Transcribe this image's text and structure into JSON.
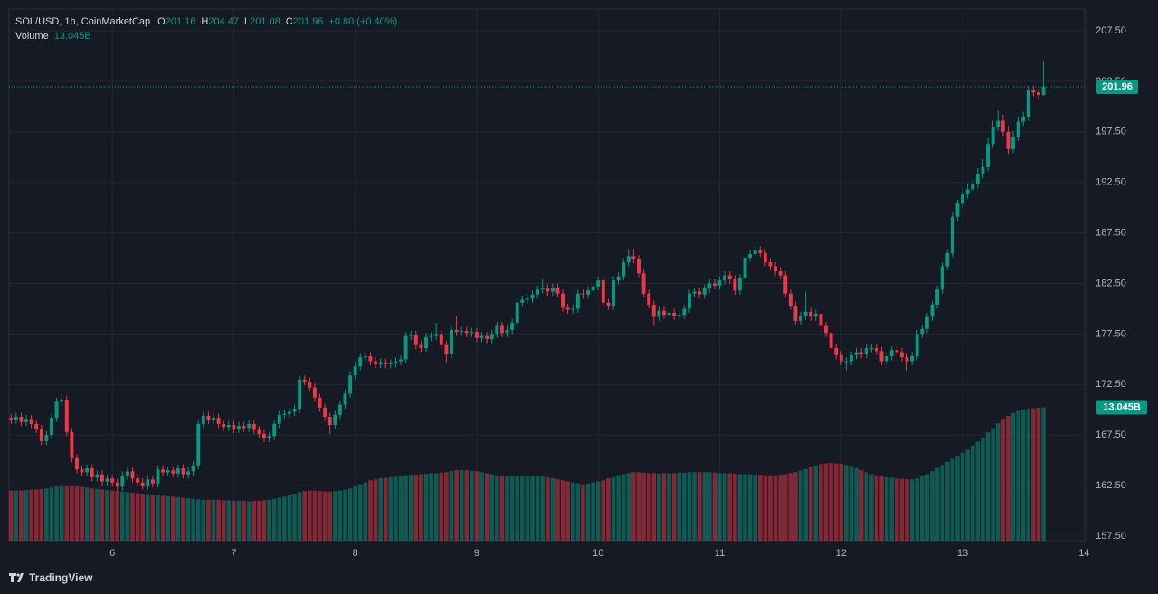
{
  "chart_data": {
    "type": "candlestick",
    "title": "SOL/USD, 1h, CoinMarketCap",
    "legend_keys": [
      "O",
      "H",
      "L",
      "C"
    ],
    "change_label": "+0.80 (+0.40%)",
    "volume_name": "Volume",
    "volume_label": "13.045B",
    "brand": "TradingView",
    "up_color": "#089981",
    "down_color": "#f23645",
    "grid": true,
    "ylim": [
      157.05,
      209.65
    ],
    "yticks": [
      {
        "value": 157.5,
        "label": "157.50"
      },
      {
        "value": 162.5,
        "label": "162.50"
      },
      {
        "value": 167.5,
        "label": "167.50"
      },
      {
        "value": 172.5,
        "label": "172.50"
      },
      {
        "value": 177.5,
        "label": "177.50"
      },
      {
        "value": 182.5,
        "label": "182.50"
      },
      {
        "value": 187.5,
        "label": "187.50"
      },
      {
        "value": 192.5,
        "label": "192.50"
      },
      {
        "value": 197.5,
        "label": "197.50"
      },
      {
        "value": 202.5,
        "label": "202.50"
      },
      {
        "value": 207.5,
        "label": "207.50"
      }
    ],
    "xlim": [
      -0.4,
      212.3
    ],
    "xticks": [
      {
        "value": 20,
        "label": "6"
      },
      {
        "value": 44,
        "label": "7"
      },
      {
        "value": 68,
        "label": "8"
      },
      {
        "value": 92,
        "label": "9"
      },
      {
        "value": 116,
        "label": "10"
      },
      {
        "value": 140,
        "label": "11"
      },
      {
        "value": 164,
        "label": "12"
      },
      {
        "value": 188,
        "label": "13"
      },
      {
        "value": 212,
        "label": "14"
      }
    ],
    "vlim": [
      0,
      52
    ],
    "open": [
      169.2,
      169.0,
      169.3,
      168.8,
      169.1,
      168.6,
      168.1,
      166.9,
      167.5,
      169.2,
      170.8,
      171.0,
      167.8,
      165.2,
      164.1,
      163.8,
      164.2,
      163.3,
      163.6,
      162.9,
      163.2,
      162.8,
      162.4,
      163.5,
      163.9,
      163.2,
      162.8,
      162.5,
      163.1,
      162.7,
      164.1,
      163.8,
      164.0,
      163.7,
      164.2,
      163.6,
      163.9,
      164.5,
      168.6,
      169.4,
      169.0,
      169.2,
      168.6,
      168.3,
      168.5,
      168.1,
      168.4,
      168.2,
      168.6,
      168.0,
      167.6,
      167.2,
      167.4,
      168.6,
      169.5,
      169.6,
      169.8,
      170.1,
      173.0,
      172.8,
      172.2,
      171.2,
      170.2,
      169.3,
      168.5,
      169.5,
      170.5,
      171.6,
      173.4,
      174.3,
      175.2,
      175.3,
      174.8,
      174.5,
      174.7,
      174.5,
      174.6,
      174.8,
      175.0,
      177.3,
      177.4,
      176.4,
      176.1,
      177.2,
      177.3,
      177.5,
      176.4,
      175.5,
      177.9,
      177.7,
      177.8,
      177.6,
      177.7,
      177.1,
      177.3,
      177.0,
      177.5,
      178.3,
      177.6,
      177.9,
      178.6,
      180.6,
      180.9,
      181.0,
      181.4,
      181.9,
      182.0,
      181.7,
      182.1,
      181.5,
      180.1,
      179.9,
      180.0,
      181.5,
      181.4,
      181.8,
      182.2,
      182.8,
      180.6,
      180.3,
      182.8,
      183.2,
      184.6,
      185.2,
      184.9,
      183.5,
      181.5,
      180.4,
      179.2,
      179.8,
      179.4,
      179.6,
      179.3,
      179.4,
      180.0,
      181.5,
      181.7,
      181.4,
      182.0,
      182.5,
      182.3,
      182.8,
      183.3,
      182.9,
      181.8,
      183.0,
      185.05,
      185.4,
      185.8,
      185.5,
      184.6,
      184.2,
      183.7,
      183.3,
      181.5,
      180.3,
      178.8,
      179.3,
      179.7,
      179.2,
      179.5,
      178.3,
      177.6,
      176.1,
      175.4,
      174.8,
      174.8,
      175.4,
      175.7,
      175.5,
      176.1,
      176.1,
      175.8,
      174.8,
      175.3,
      175.9,
      175.7,
      175.2,
      174.8,
      175.3,
      177.5,
      178.0,
      179.2,
      180.4,
      181.9,
      184.2,
      185.5,
      189.1,
      190.4,
      191.3,
      191.8,
      192.3,
      193.3,
      194.0,
      196.3,
      198.0,
      198.6,
      197.5,
      195.8,
      197.0,
      198.5,
      199.0,
      201.6,
      201.4,
      201.16
    ],
    "high": [
      169.6,
      169.7,
      169.7,
      169.5,
      169.5,
      169.0,
      168.5,
      167.9,
      169.6,
      171.2,
      171.6,
      171.4,
      168.2,
      165.6,
      164.5,
      164.6,
      164.6,
      164.0,
      164.0,
      163.6,
      163.6,
      163.2,
      163.9,
      164.3,
      164.3,
      163.6,
      163.2,
      163.5,
      163.5,
      164.5,
      164.5,
      164.4,
      164.4,
      164.6,
      164.6,
      164.3,
      164.9,
      169.0,
      169.8,
      169.8,
      169.6,
      169.6,
      169.0,
      168.9,
      168.9,
      168.8,
      168.8,
      169.0,
      169.0,
      168.4,
      168.0,
      167.8,
      169.0,
      169.9,
      170.0,
      170.2,
      170.5,
      173.4,
      173.4,
      173.2,
      172.6,
      171.6,
      170.6,
      169.7,
      169.9,
      170.9,
      172.0,
      173.8,
      174.7,
      175.6,
      175.7,
      175.7,
      175.2,
      175.1,
      175.1,
      175.0,
      175.2,
      175.4,
      177.7,
      177.8,
      177.8,
      176.8,
      177.6,
      177.7,
      178.6,
      177.9,
      176.8,
      178.3,
      179.3,
      178.2,
      178.2,
      178.1,
      178.1,
      177.7,
      177.7,
      177.9,
      178.7,
      178.7,
      178.3,
      179.0,
      181.0,
      181.3,
      181.4,
      181.8,
      182.3,
      182.9,
      182.4,
      182.5,
      182.5,
      181.9,
      180.5,
      180.4,
      181.9,
      181.9,
      182.2,
      182.6,
      183.2,
      183.2,
      181.0,
      183.2,
      183.6,
      185.0,
      185.9,
      185.9,
      185.3,
      183.9,
      181.9,
      180.8,
      180.2,
      180.2,
      180.0,
      180.0,
      179.8,
      180.4,
      181.9,
      182.1,
      182.1,
      182.4,
      182.9,
      182.9,
      183.2,
      183.7,
      183.7,
      183.3,
      183.4,
      185.45,
      185.8,
      186.6,
      186.2,
      185.9,
      185.0,
      184.6,
      184.1,
      183.7,
      181.9,
      180.7,
      179.7,
      181.7,
      180.1,
      179.9,
      179.9,
      178.7,
      178.0,
      176.5,
      175.8,
      175.2,
      175.8,
      176.1,
      176.1,
      176.5,
      176.5,
      176.5,
      176.2,
      175.7,
      176.3,
      176.3,
      176.1,
      175.6,
      175.7,
      177.9,
      178.4,
      179.6,
      180.8,
      182.3,
      184.6,
      185.9,
      189.5,
      190.8,
      191.9,
      192.4,
      192.9,
      193.9,
      194.8,
      196.9,
      198.6,
      199.6,
      199.2,
      198.1,
      197.6,
      199.0,
      199.5,
      202.0,
      202.0,
      201.8,
      204.47
    ],
    "low": [
      168.6,
      168.6,
      168.4,
      168.4,
      168.2,
      167.7,
      166.5,
      166.5,
      167.1,
      168.8,
      170.4,
      167.4,
      164.8,
      163.7,
      163.4,
      163.4,
      162.9,
      162.9,
      162.5,
      162.5,
      162.4,
      162.0,
      162.0,
      163.1,
      162.8,
      162.4,
      162.1,
      162.1,
      162.3,
      162.3,
      163.4,
      163.4,
      163.3,
      163.3,
      163.2,
      163.2,
      163.5,
      164.1,
      168.2,
      168.6,
      168.6,
      168.2,
      167.9,
      167.9,
      167.7,
      167.7,
      167.8,
      167.8,
      167.6,
      167.2,
      166.8,
      166.8,
      167.0,
      168.2,
      169.1,
      169.2,
      169.4,
      169.7,
      172.4,
      171.8,
      170.8,
      169.8,
      168.9,
      167.6,
      168.1,
      169.1,
      170.1,
      171.2,
      173.0,
      173.9,
      174.8,
      174.4,
      174.1,
      174.1,
      174.1,
      174.1,
      174.2,
      174.4,
      174.6,
      176.9,
      176.0,
      175.7,
      175.7,
      176.8,
      176.9,
      176.0,
      174.7,
      175.1,
      177.3,
      177.3,
      177.2,
      177.2,
      176.7,
      176.7,
      176.6,
      176.6,
      177.1,
      177.2,
      177.2,
      177.5,
      178.2,
      180.2,
      180.5,
      180.6,
      181.0,
      181.5,
      181.3,
      181.3,
      181.1,
      179.7,
      179.5,
      179.5,
      179.6,
      181.0,
      181.0,
      181.4,
      181.8,
      180.2,
      179.9,
      179.9,
      182.4,
      182.8,
      184.2,
      184.5,
      183.1,
      181.1,
      180.0,
      178.3,
      178.8,
      179.0,
      179.0,
      178.9,
      178.9,
      179.0,
      179.6,
      181.1,
      181.0,
      181.0,
      181.6,
      181.9,
      181.9,
      182.4,
      182.5,
      181.4,
      181.4,
      182.6,
      184.65,
      185.0,
      185.1,
      184.2,
      183.8,
      183.3,
      182.9,
      181.1,
      179.9,
      178.4,
      178.4,
      178.9,
      178.8,
      178.8,
      177.9,
      177.2,
      175.7,
      175.0,
      174.4,
      173.9,
      174.4,
      175.0,
      175.1,
      175.1,
      175.7,
      175.4,
      174.4,
      174.4,
      174.9,
      175.3,
      174.8,
      173.9,
      174.4,
      174.9,
      177.1,
      177.6,
      178.8,
      180.0,
      181.5,
      183.8,
      185.1,
      188.7,
      190.0,
      190.9,
      191.4,
      191.9,
      192.9,
      193.6,
      195.9,
      197.6,
      197.1,
      195.3,
      195.4,
      196.6,
      198.1,
      198.6,
      201.0,
      200.8,
      201.08
    ],
    "close": [
      169.0,
      169.3,
      168.8,
      169.1,
      168.6,
      168.1,
      166.9,
      167.5,
      169.2,
      170.8,
      171.0,
      167.8,
      165.2,
      164.1,
      163.8,
      164.2,
      163.3,
      163.6,
      162.9,
      163.2,
      162.8,
      162.4,
      163.5,
      163.9,
      163.2,
      162.8,
      162.5,
      163.1,
      162.7,
      164.1,
      163.8,
      164.0,
      163.7,
      164.2,
      163.6,
      163.9,
      164.5,
      168.6,
      169.4,
      169.0,
      169.2,
      168.6,
      168.3,
      168.5,
      168.1,
      168.4,
      168.2,
      168.6,
      168.0,
      167.6,
      167.2,
      167.4,
      168.6,
      169.5,
      169.6,
      169.8,
      170.1,
      173.0,
      172.8,
      172.2,
      171.2,
      170.2,
      169.3,
      168.5,
      169.5,
      170.5,
      171.6,
      173.4,
      174.3,
      175.2,
      175.3,
      174.8,
      174.5,
      174.7,
      174.5,
      174.6,
      174.8,
      175.0,
      177.3,
      177.4,
      176.4,
      176.1,
      177.2,
      177.3,
      177.5,
      176.4,
      175.5,
      177.9,
      177.7,
      177.8,
      177.6,
      177.7,
      177.1,
      177.3,
      177.0,
      177.5,
      178.3,
      177.6,
      177.9,
      178.6,
      180.6,
      180.9,
      181.0,
      181.4,
      181.9,
      182.0,
      181.7,
      182.1,
      181.5,
      180.1,
      179.9,
      180.0,
      181.5,
      181.4,
      181.8,
      182.2,
      182.8,
      180.6,
      180.3,
      182.8,
      183.2,
      184.6,
      185.2,
      184.9,
      183.5,
      181.5,
      180.4,
      179.2,
      179.8,
      179.4,
      179.6,
      179.3,
      179.4,
      180.0,
      181.5,
      181.7,
      181.4,
      182.0,
      182.5,
      182.3,
      182.8,
      183.3,
      182.9,
      181.8,
      183.0,
      185.05,
      185.4,
      185.8,
      185.5,
      184.6,
      184.2,
      183.7,
      183.3,
      181.5,
      180.3,
      178.8,
      179.3,
      179.7,
      179.2,
      179.5,
      178.3,
      177.6,
      176.1,
      175.4,
      174.8,
      174.8,
      175.4,
      175.7,
      175.5,
      176.1,
      176.1,
      175.8,
      174.8,
      175.3,
      175.9,
      175.7,
      175.2,
      174.8,
      175.3,
      177.5,
      178.0,
      179.2,
      180.4,
      181.9,
      184.2,
      185.5,
      189.1,
      190.4,
      191.3,
      191.8,
      192.3,
      193.3,
      194.0,
      196.3,
      198.0,
      198.6,
      197.5,
      195.8,
      197.0,
      198.5,
      199.0,
      201.6,
      201.4,
      201.16,
      201.96
    ],
    "volume": [
      4.9,
      4.9,
      4.9,
      4.95,
      5.0,
      5.0,
      5.05,
      5.1,
      5.2,
      5.3,
      5.4,
      5.4,
      5.35,
      5.3,
      5.25,
      5.2,
      5.1,
      5.05,
      5.0,
      4.95,
      4.9,
      4.85,
      4.8,
      4.75,
      4.7,
      4.65,
      4.6,
      4.55,
      4.5,
      4.45,
      4.4,
      4.35,
      4.3,
      4.25,
      4.2,
      4.15,
      4.1,
      4.05,
      4.0,
      4.0,
      4.0,
      4.0,
      3.95,
      3.95,
      3.9,
      3.9,
      3.9,
      3.85,
      3.9,
      3.9,
      3.95,
      4.0,
      4.1,
      4.2,
      4.3,
      4.45,
      4.6,
      4.75,
      4.85,
      4.9,
      4.9,
      4.85,
      4.8,
      4.8,
      4.85,
      4.9,
      5.0,
      5.1,
      5.3,
      5.5,
      5.7,
      5.9,
      6.0,
      6.1,
      6.15,
      6.2,
      6.25,
      6.3,
      6.4,
      6.45,
      6.45,
      6.5,
      6.55,
      6.6,
      6.6,
      6.65,
      6.7,
      6.8,
      6.9,
      6.9,
      6.9,
      6.85,
      6.8,
      6.7,
      6.6,
      6.5,
      6.4,
      6.35,
      6.3,
      6.3,
      6.35,
      6.35,
      6.3,
      6.3,
      6.3,
      6.25,
      6.2,
      6.1,
      6.0,
      5.9,
      5.8,
      5.7,
      5.6,
      5.5,
      5.6,
      5.7,
      5.8,
      5.9,
      6.1,
      6.2,
      6.4,
      6.5,
      6.6,
      6.7,
      6.7,
      6.65,
      6.6,
      6.6,
      6.55,
      6.6,
      6.6,
      6.6,
      6.65,
      6.65,
      6.7,
      6.7,
      6.7,
      6.7,
      6.7,
      6.65,
      6.6,
      6.6,
      6.6,
      6.55,
      6.5,
      6.5,
      6.5,
      6.45,
      6.45,
      6.4,
      6.4,
      6.4,
      6.45,
      6.5,
      6.6,
      6.7,
      6.85,
      7.0,
      7.2,
      7.35,
      7.5,
      7.55,
      7.6,
      7.55,
      7.5,
      7.4,
      7.3,
      7.1,
      6.9,
      6.7,
      6.5,
      6.4,
      6.3,
      6.2,
      6.15,
      6.1,
      6.05,
      6.0,
      6.0,
      6.1,
      6.3,
      6.5,
      6.8,
      7.1,
      7.4,
      7.7,
      8.0,
      8.3,
      8.6,
      8.9,
      9.3,
      9.7,
      10.1,
      10.6,
      11.0,
      11.5,
      11.9,
      12.2,
      12.5,
      12.7,
      12.85,
      12.9,
      12.95,
      13.0,
      13.045
    ]
  }
}
